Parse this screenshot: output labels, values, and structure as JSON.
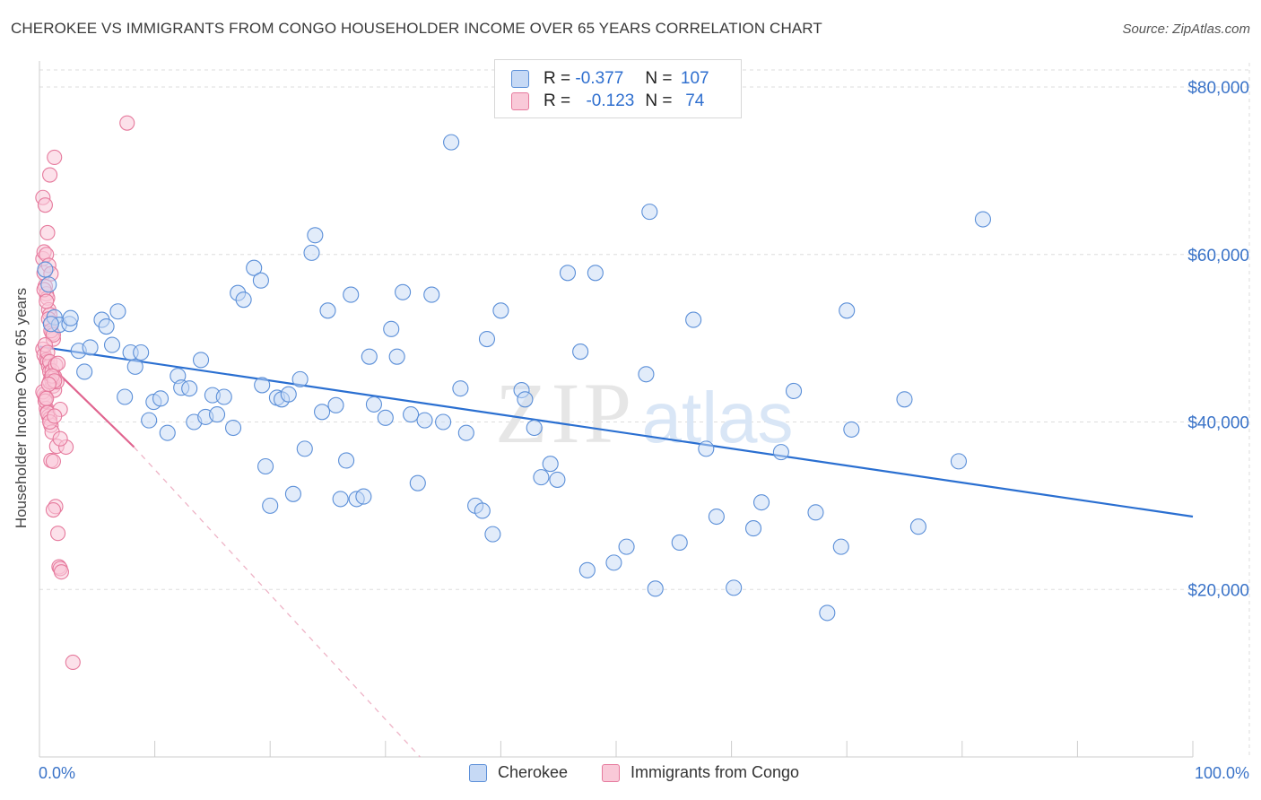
{
  "title": "CHEROKEE VS IMMIGRANTS FROM CONGO HOUSEHOLDER INCOME OVER 65 YEARS CORRELATION CHART",
  "source": "Source: ZipAtlas.com",
  "watermark": {
    "zip": "ZIP",
    "atlas": "atlas"
  },
  "legend": {
    "rows": [
      {
        "r_label": "R =",
        "r_value": "-0.377",
        "n_label": "N =",
        "n_value": "107"
      },
      {
        "r_label": "R =",
        "r_value": "-0.123",
        "n_label": "N =",
        "n_value": "74"
      }
    ],
    "bottom": [
      "Cherokee",
      "Immigrants from Congo"
    ]
  },
  "colors": {
    "cherokee_fill": "#c6d9f5",
    "cherokee_stroke": "#5b8fd8",
    "cherokee_line": "#2a6fd1",
    "congo_fill": "#f9c9d8",
    "congo_stroke": "#e67a9d",
    "congo_line": "#e0648f",
    "axis_label": "#3a73c8"
  },
  "chart_data": {
    "type": "scatter",
    "title": "CHEROKEE VS IMMIGRANTS FROM CONGO HOUSEHOLDER INCOME OVER 65 YEARS CORRELATION CHART",
    "xlabel": "",
    "ylabel": "Householder Income Over 65 years",
    "xlim": [
      0,
      100
    ],
    "ylim": [
      0,
      80000
    ],
    "x_tick_labels": [
      "0.0%",
      "100.0%"
    ],
    "y_ticks": [
      20000,
      40000,
      60000,
      80000
    ],
    "y_tick_labels": [
      "$20,000",
      "$40,000",
      "$60,000",
      "$80,000"
    ],
    "grid": true,
    "series": [
      {
        "name": "Cherokee",
        "points": [
          [
            0.5,
            58200
          ],
          [
            0.8,
            56400
          ],
          [
            1.3,
            52500
          ],
          [
            1.7,
            51600
          ],
          [
            2.6,
            51700
          ],
          [
            2.7,
            52400
          ],
          [
            3.4,
            48500
          ],
          [
            3.9,
            46000
          ],
          [
            4.4,
            48900
          ],
          [
            5.4,
            52200
          ],
          [
            5.8,
            51400
          ],
          [
            6.3,
            49200
          ],
          [
            6.8,
            53200
          ],
          [
            7.4,
            43000
          ],
          [
            7.9,
            48300
          ],
          [
            8.3,
            46600
          ],
          [
            8.8,
            48300
          ],
          [
            9.5,
            40200
          ],
          [
            9.9,
            42400
          ],
          [
            10.5,
            42800
          ],
          [
            11.1,
            38700
          ],
          [
            12.0,
            45500
          ],
          [
            12.3,
            44100
          ],
          [
            13.0,
            44000
          ],
          [
            13.4,
            40000
          ],
          [
            14.0,
            47400
          ],
          [
            14.4,
            40600
          ],
          [
            15.0,
            43200
          ],
          [
            15.4,
            40900
          ],
          [
            16.0,
            43000
          ],
          [
            16.8,
            39300
          ],
          [
            17.2,
            55400
          ],
          [
            17.7,
            54600
          ],
          [
            18.6,
            58400
          ],
          [
            19.3,
            44400
          ],
          [
            19.2,
            56900
          ],
          [
            19.6,
            34700
          ],
          [
            20.0,
            30000
          ],
          [
            20.6,
            42900
          ],
          [
            21.0,
            42700
          ],
          [
            21.6,
            43300
          ],
          [
            22.0,
            31400
          ],
          [
            22.6,
            45100
          ],
          [
            23.0,
            36800
          ],
          [
            23.6,
            60200
          ],
          [
            23.9,
            62300
          ],
          [
            24.5,
            41200
          ],
          [
            25.0,
            53300
          ],
          [
            25.7,
            42000
          ],
          [
            26.1,
            30800
          ],
          [
            26.6,
            35400
          ],
          [
            27.0,
            55200
          ],
          [
            27.5,
            30800
          ],
          [
            28.1,
            31100
          ],
          [
            28.6,
            47800
          ],
          [
            29.0,
            42100
          ],
          [
            30.0,
            40500
          ],
          [
            30.5,
            51100
          ],
          [
            31.0,
            47800
          ],
          [
            31.5,
            55500
          ],
          [
            32.2,
            40900
          ],
          [
            32.8,
            32700
          ],
          [
            33.4,
            40200
          ],
          [
            34.0,
            55200
          ],
          [
            35.0,
            40000
          ],
          [
            35.7,
            73400
          ],
          [
            36.5,
            44000
          ],
          [
            37.0,
            38700
          ],
          [
            37.8,
            30000
          ],
          [
            38.4,
            29400
          ],
          [
            38.8,
            49900
          ],
          [
            39.3,
            26600
          ],
          [
            40.0,
            53300
          ],
          [
            41.8,
            43800
          ],
          [
            42.1,
            42700
          ],
          [
            42.9,
            39300
          ],
          [
            43.5,
            33400
          ],
          [
            44.3,
            35000
          ],
          [
            44.9,
            33100
          ],
          [
            45.8,
            57800
          ],
          [
            46.9,
            48400
          ],
          [
            47.5,
            22300
          ],
          [
            48.2,
            57800
          ],
          [
            49.8,
            23200
          ],
          [
            50.9,
            25100
          ],
          [
            52.6,
            45700
          ],
          [
            52.9,
            65100
          ],
          [
            53.4,
            20100
          ],
          [
            55.5,
            25600
          ],
          [
            56.7,
            52200
          ],
          [
            57.8,
            36800
          ],
          [
            58.7,
            28700
          ],
          [
            60.2,
            20200
          ],
          [
            61.9,
            27300
          ],
          [
            62.6,
            30400
          ],
          [
            64.3,
            36400
          ],
          [
            65.4,
            43700
          ],
          [
            67.3,
            29200
          ],
          [
            68.3,
            17200
          ],
          [
            69.5,
            25100
          ],
          [
            70.0,
            53300
          ],
          [
            70.4,
            39100
          ],
          [
            75.0,
            42700
          ],
          [
            76.2,
            27500
          ],
          [
            79.7,
            35300
          ],
          [
            81.8,
            64200
          ],
          [
            1.0,
            51700
          ]
        ],
        "trend": {
          "x0": 0,
          "y0": 49000,
          "x1": 100,
          "y1": 28700
        }
      },
      {
        "name": "Immigrants from Congo",
        "points": [
          [
            0.3,
            59500
          ],
          [
            0.4,
            57800
          ],
          [
            0.5,
            56200
          ],
          [
            0.6,
            55300
          ],
          [
            0.7,
            54800
          ],
          [
            0.8,
            53400
          ],
          [
            0.9,
            52800
          ],
          [
            1.0,
            51700
          ],
          [
            1.1,
            50600
          ],
          [
            1.2,
            49900
          ],
          [
            0.3,
            48700
          ],
          [
            0.4,
            48000
          ],
          [
            0.6,
            47400
          ],
          [
            0.7,
            47200
          ],
          [
            0.8,
            46600
          ],
          [
            0.9,
            46000
          ],
          [
            1.0,
            45300
          ],
          [
            1.1,
            44800
          ],
          [
            1.2,
            44300
          ],
          [
            1.3,
            43800
          ],
          [
            0.4,
            43300
          ],
          [
            0.5,
            42900
          ],
          [
            0.6,
            41600
          ],
          [
            0.7,
            41200
          ],
          [
            0.8,
            40700
          ],
          [
            0.9,
            40400
          ],
          [
            1.0,
            39600
          ],
          [
            1.1,
            38800
          ],
          [
            0.3,
            66800
          ],
          [
            0.5,
            65900
          ],
          [
            0.7,
            62600
          ],
          [
            0.9,
            69500
          ],
          [
            1.3,
            71600
          ],
          [
            7.6,
            75700
          ],
          [
            0.4,
            60300
          ],
          [
            0.6,
            60000
          ],
          [
            0.8,
            58700
          ],
          [
            1.0,
            57700
          ],
          [
            0.4,
            55800
          ],
          [
            0.6,
            54400
          ],
          [
            0.8,
            52300
          ],
          [
            1.0,
            50900
          ],
          [
            1.2,
            50400
          ],
          [
            0.5,
            49200
          ],
          [
            0.7,
            48300
          ],
          [
            0.9,
            47200
          ],
          [
            1.1,
            46100
          ],
          [
            1.3,
            45400
          ],
          [
            1.5,
            44800
          ],
          [
            0.3,
            43600
          ],
          [
            0.5,
            42500
          ],
          [
            0.7,
            41100
          ],
          [
            0.9,
            40000
          ],
          [
            1.5,
            37100
          ],
          [
            2.3,
            37000
          ],
          [
            1.0,
            35400
          ],
          [
            1.2,
            35300
          ],
          [
            1.4,
            29900
          ],
          [
            1.6,
            26700
          ],
          [
            1.8,
            38000
          ],
          [
            1.7,
            22700
          ],
          [
            1.8,
            22500
          ],
          [
            1.9,
            22100
          ],
          [
            2.9,
            11300
          ],
          [
            1.2,
            29500
          ],
          [
            1.4,
            46800
          ],
          [
            1.6,
            47000
          ],
          [
            1.8,
            41500
          ],
          [
            0.6,
            42800
          ],
          [
            0.9,
            44800
          ],
          [
            1.1,
            45500
          ],
          [
            1.3,
            44900
          ],
          [
            0.8,
            44500
          ],
          [
            1.3,
            40700
          ]
        ],
        "trend_solid": {
          "x0": 0,
          "y0": 48000,
          "x1": 8.2,
          "y1": 37000
        },
        "trend_dashed": {
          "x0": 8.2,
          "y0": 37000,
          "x1": 33.0,
          "y1": 0
        }
      }
    ]
  }
}
